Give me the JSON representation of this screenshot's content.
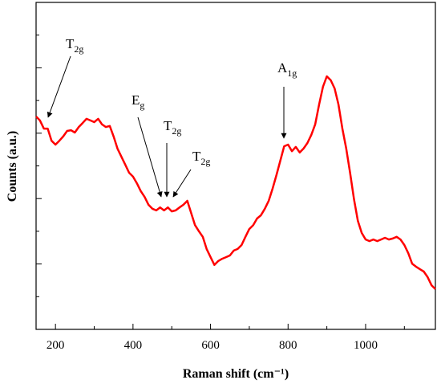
{
  "chart_data": {
    "type": "line",
    "xlabel": "Raman shift (cm⁻¹)",
    "ylabel": "Counts (a.u.)",
    "xlim": [
      150,
      1180
    ],
    "ylim": [
      0,
      10
    ],
    "xticks": [
      200,
      400,
      600,
      800,
      1000
    ],
    "xminor": [
      300,
      500,
      700,
      900,
      1100
    ],
    "yticks": [
      1,
      2,
      3,
      4,
      5,
      6,
      7,
      8,
      9
    ],
    "ytick_labels": false,
    "color": "#ff0000",
    "x": [
      150,
      160,
      170,
      180,
      190,
      200,
      210,
      220,
      230,
      240,
      250,
      260,
      270,
      280,
      290,
      300,
      310,
      320,
      330,
      340,
      350,
      360,
      370,
      380,
      390,
      400,
      410,
      420,
      430,
      440,
      450,
      460,
      470,
      480,
      490,
      500,
      510,
      520,
      530,
      540,
      550,
      560,
      570,
      580,
      590,
      600,
      610,
      620,
      630,
      640,
      650,
      660,
      670,
      680,
      690,
      700,
      710,
      720,
      730,
      740,
      750,
      760,
      770,
      780,
      790,
      800,
      810,
      820,
      830,
      840,
      850,
      860,
      870,
      880,
      890,
      900,
      910,
      920,
      930,
      940,
      950,
      960,
      970,
      980,
      990,
      1000,
      1010,
      1020,
      1030,
      1040,
      1050,
      1060,
      1070,
      1080,
      1090,
      1100,
      1110,
      1120,
      1130,
      1140,
      1150,
      1160,
      1170,
      1180
    ],
    "values": [
      6.51,
      6.39,
      6.14,
      6.14,
      5.77,
      5.65,
      5.77,
      5.9,
      6.07,
      6.09,
      6.02,
      6.19,
      6.31,
      6.44,
      6.39,
      6.34,
      6.44,
      6.27,
      6.19,
      6.22,
      5.9,
      5.53,
      5.28,
      5.04,
      4.79,
      4.67,
      4.47,
      4.23,
      4.05,
      3.81,
      3.69,
      3.64,
      3.73,
      3.64,
      3.73,
      3.61,
      3.64,
      3.73,
      3.81,
      3.93,
      3.56,
      3.19,
      3.0,
      2.83,
      2.46,
      2.21,
      1.97,
      2.09,
      2.16,
      2.21,
      2.26,
      2.41,
      2.46,
      2.58,
      2.83,
      3.07,
      3.19,
      3.39,
      3.49,
      3.69,
      3.93,
      4.3,
      4.72,
      5.16,
      5.6,
      5.65,
      5.45,
      5.58,
      5.41,
      5.53,
      5.7,
      5.95,
      6.27,
      6.88,
      7.42,
      7.74,
      7.62,
      7.37,
      6.88,
      6.14,
      5.53,
      4.79,
      3.98,
      3.32,
      2.95,
      2.75,
      2.7,
      2.75,
      2.7,
      2.75,
      2.8,
      2.75,
      2.78,
      2.83,
      2.75,
      2.58,
      2.33,
      2.01,
      1.92,
      1.84,
      1.77,
      1.6,
      1.35,
      1.23
    ],
    "annotations": [
      {
        "label": "T",
        "sub": "2g"
      },
      {
        "label": "E",
        "sub": "g"
      },
      {
        "label": "T",
        "sub": "2g"
      },
      {
        "label": "T",
        "sub": "2g"
      },
      {
        "label": "A",
        "sub": "1g"
      }
    ]
  }
}
